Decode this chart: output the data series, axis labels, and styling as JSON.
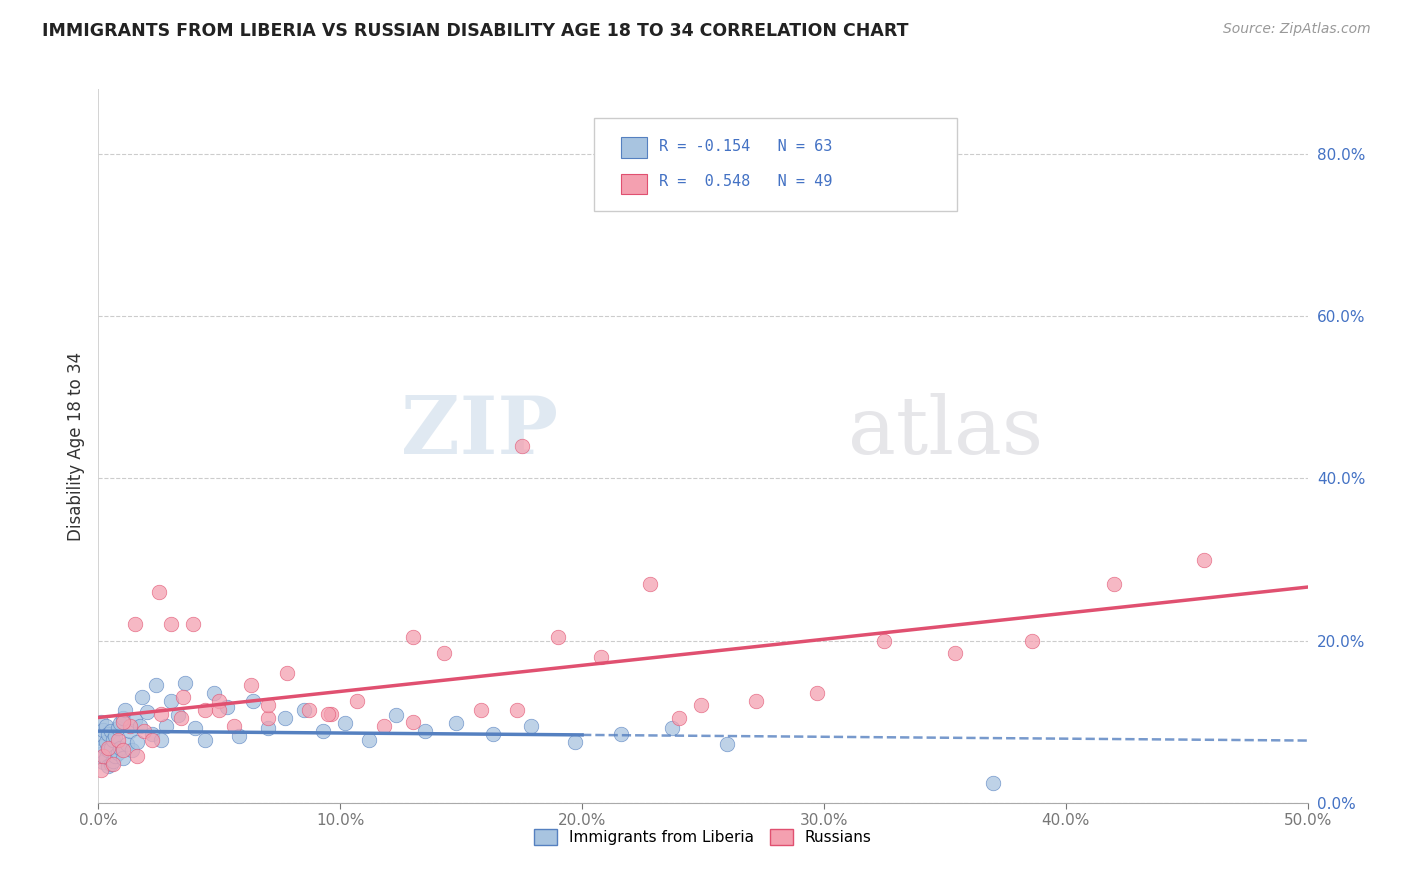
{
  "title": "IMMIGRANTS FROM LIBERIA VS RUSSIAN DISABILITY AGE 18 TO 34 CORRELATION CHART",
  "source": "Source: ZipAtlas.com",
  "ylabel": "Disability Age 18 to 34",
  "xlim": [
    0.0,
    0.5
  ],
  "ylim": [
    0.0,
    0.88
  ],
  "xticks": [
    0.0,
    0.1,
    0.2,
    0.3,
    0.4,
    0.5
  ],
  "xtick_labels": [
    "0.0%",
    "10.0%",
    "20.0%",
    "30.0%",
    "40.0%",
    "50.0%"
  ],
  "yticks_right": [
    0.0,
    0.2,
    0.4,
    0.6,
    0.8
  ],
  "ytick_labels_right": [
    "0.0%",
    "20.0%",
    "40.0%",
    "60.0%",
    "80.0%"
  ],
  "legend_label1": "Immigrants from Liberia",
  "legend_label2": "Russians",
  "color_blue": "#a8c4e0",
  "color_pink": "#f4a0b0",
  "color_blue_line": "#5580c0",
  "color_pink_line": "#e05070",
  "color_blue_text": "#4472c4",
  "watermark_zip": "ZIP",
  "watermark_atlas": "atlas",
  "liberia_x": [
    0.001,
    0.001,
    0.001,
    0.002,
    0.002,
    0.002,
    0.003,
    0.003,
    0.003,
    0.004,
    0.004,
    0.004,
    0.005,
    0.005,
    0.005,
    0.006,
    0.006,
    0.007,
    0.007,
    0.008,
    0.008,
    0.009,
    0.009,
    0.01,
    0.01,
    0.011,
    0.012,
    0.013,
    0.014,
    0.015,
    0.016,
    0.017,
    0.018,
    0.02,
    0.022,
    0.024,
    0.026,
    0.028,
    0.03,
    0.033,
    0.036,
    0.04,
    0.044,
    0.048,
    0.053,
    0.058,
    0.064,
    0.07,
    0.077,
    0.085,
    0.093,
    0.102,
    0.112,
    0.123,
    0.135,
    0.148,
    0.163,
    0.179,
    0.197,
    0.216,
    0.237,
    0.26,
    0.37
  ],
  "liberia_y": [
    0.06,
    0.08,
    0.1,
    0.05,
    0.07,
    0.09,
    0.055,
    0.075,
    0.095,
    0.045,
    0.065,
    0.085,
    0.048,
    0.068,
    0.088,
    0.052,
    0.078,
    0.058,
    0.082,
    0.062,
    0.092,
    0.068,
    0.098,
    0.055,
    0.105,
    0.115,
    0.072,
    0.088,
    0.065,
    0.102,
    0.075,
    0.095,
    0.13,
    0.112,
    0.085,
    0.145,
    0.078,
    0.095,
    0.125,
    0.108,
    0.148,
    0.092,
    0.078,
    0.135,
    0.118,
    0.082,
    0.125,
    0.092,
    0.105,
    0.115,
    0.088,
    0.098,
    0.078,
    0.108,
    0.088,
    0.098,
    0.085,
    0.095,
    0.075,
    0.085,
    0.092,
    0.072,
    0.025
  ],
  "russian_x": [
    0.001,
    0.002,
    0.004,
    0.006,
    0.008,
    0.01,
    0.013,
    0.016,
    0.019,
    0.022,
    0.026,
    0.03,
    0.034,
    0.039,
    0.044,
    0.05,
    0.056,
    0.063,
    0.07,
    0.078,
    0.087,
    0.096,
    0.107,
    0.118,
    0.13,
    0.143,
    0.158,
    0.173,
    0.19,
    0.208,
    0.228,
    0.249,
    0.272,
    0.297,
    0.325,
    0.354,
    0.386,
    0.42,
    0.457,
    0.01,
    0.015,
    0.025,
    0.035,
    0.05,
    0.07,
    0.095,
    0.13,
    0.175,
    0.24
  ],
  "russian_y": [
    0.04,
    0.058,
    0.068,
    0.048,
    0.078,
    0.065,
    0.095,
    0.058,
    0.088,
    0.078,
    0.11,
    0.22,
    0.105,
    0.22,
    0.115,
    0.125,
    0.095,
    0.145,
    0.105,
    0.16,
    0.115,
    0.11,
    0.125,
    0.095,
    0.205,
    0.185,
    0.115,
    0.115,
    0.205,
    0.18,
    0.27,
    0.12,
    0.125,
    0.135,
    0.2,
    0.185,
    0.2,
    0.27,
    0.3,
    0.1,
    0.22,
    0.26,
    0.13,
    0.115,
    0.12,
    0.11,
    0.1,
    0.44,
    0.105
  ],
  "liberia_r": -0.154,
  "liberia_n": 63,
  "russian_r": 0.548,
  "russian_n": 49,
  "solid_cutoff": 0.2
}
